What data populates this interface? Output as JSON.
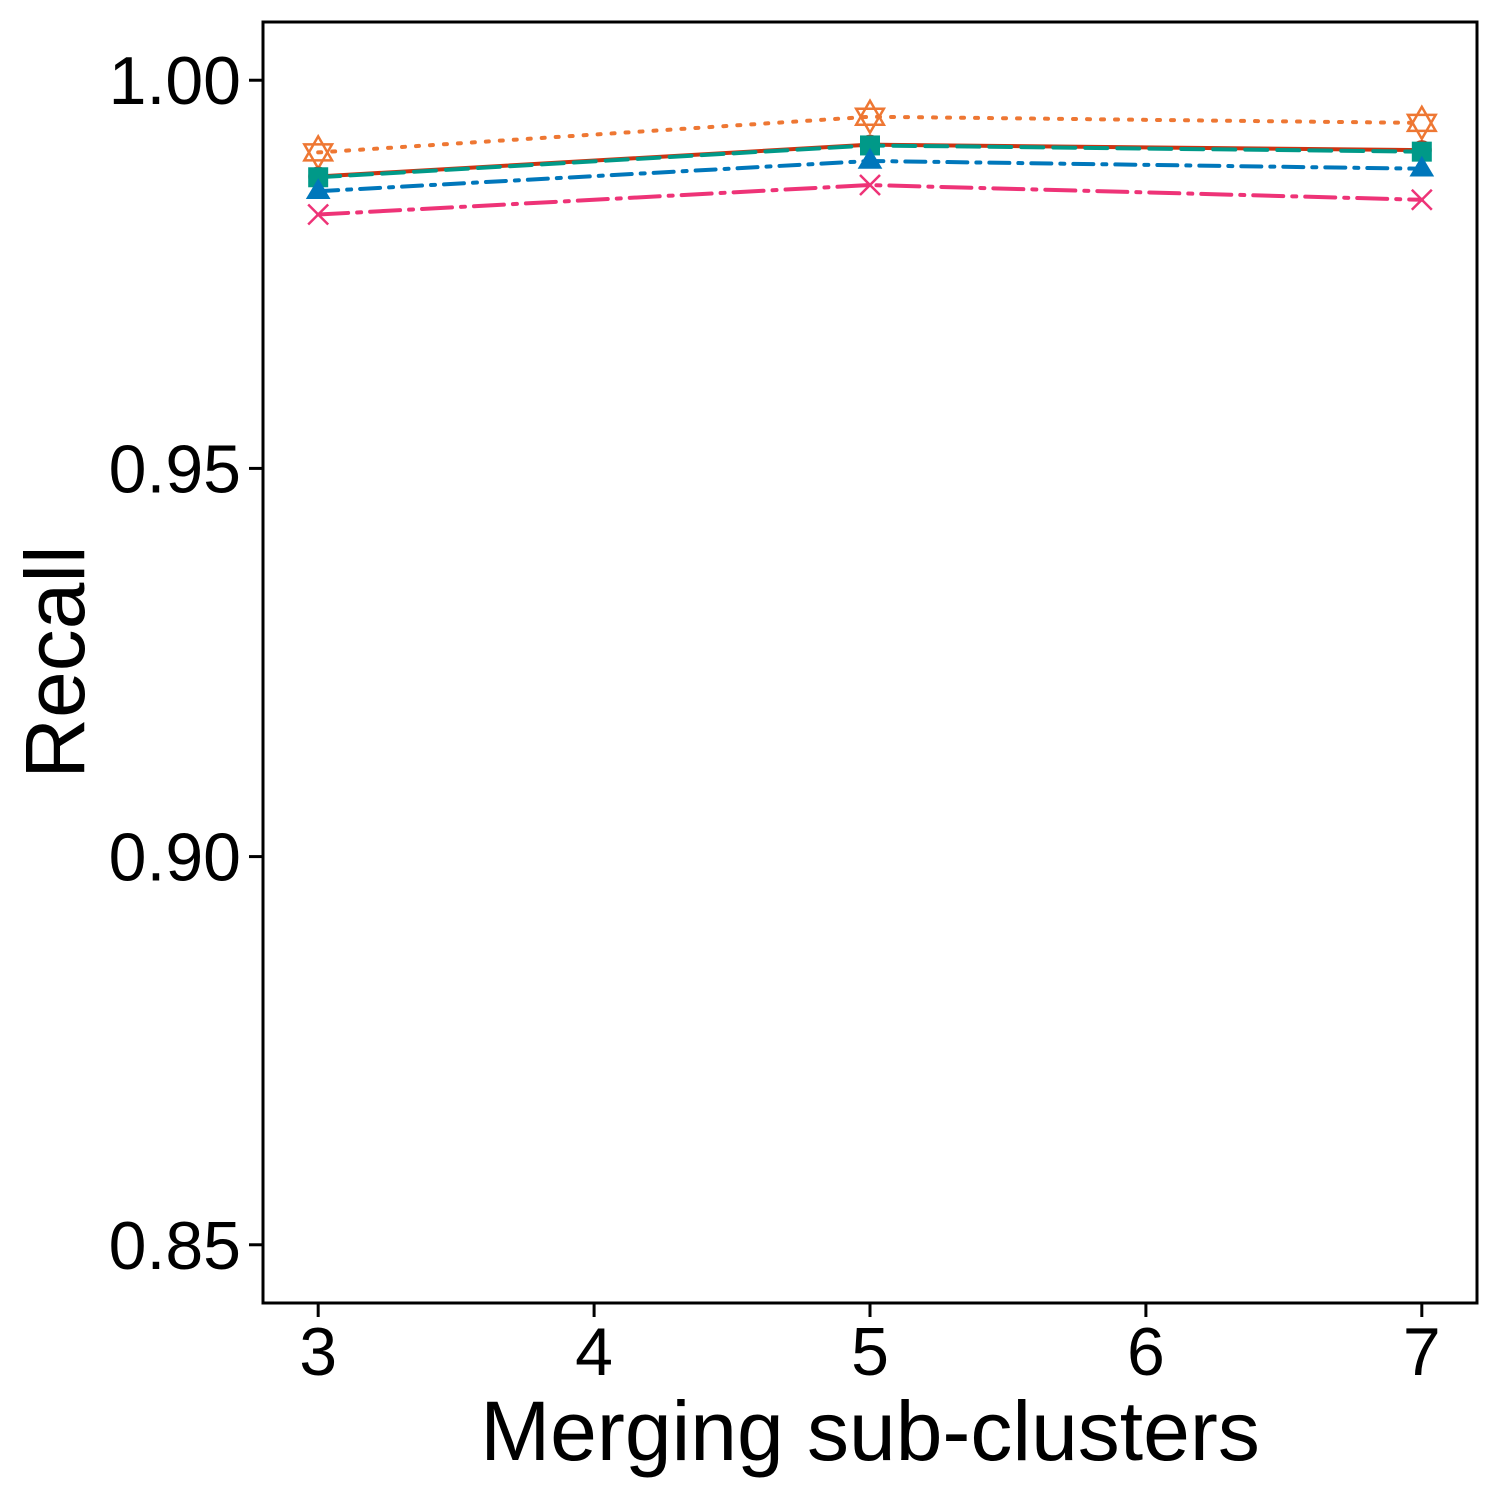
{
  "chart_data": {
    "type": "line",
    "title": "",
    "xlabel": "Merging sub-clusters",
    "ylabel": "Recall",
    "x": [
      3,
      5,
      7
    ],
    "xticks": [
      3,
      4,
      5,
      6,
      7
    ],
    "xtick_labels": [
      "3",
      "4",
      "5",
      "6",
      "7"
    ],
    "yticks": [
      0.85,
      0.9,
      0.95,
      1.0
    ],
    "ytick_labels": [
      "0.85",
      "0.90",
      "0.95",
      "1.00"
    ],
    "xlim": [
      2.8,
      7.2
    ],
    "ylim": [
      0.8425,
      1.0075
    ],
    "grid": false,
    "legend": "none",
    "series": [
      {
        "values": [
          0.9907,
          0.9953,
          0.9945
        ],
        "color": "#EE7733",
        "dash": "dotted",
        "marker": "star-of-david-open"
      },
      {
        "values": [
          0.9876,
          0.9917,
          0.991
        ],
        "color": "#CC3311",
        "dash": "solid",
        "marker": "circle"
      },
      {
        "values": [
          0.9875,
          0.9916,
          0.9908
        ],
        "color": "#009988",
        "dash": "dashed",
        "marker": "square"
      },
      {
        "values": [
          0.9857,
          0.9896,
          0.9886
        ],
        "color": "#0077BB",
        "dash": "dotdash",
        "marker": "triangle"
      },
      {
        "values": [
          0.9827,
          0.9865,
          0.9846
        ],
        "color": "#EE3377",
        "dash": "longdash-dot",
        "marker": "x"
      }
    ]
  }
}
